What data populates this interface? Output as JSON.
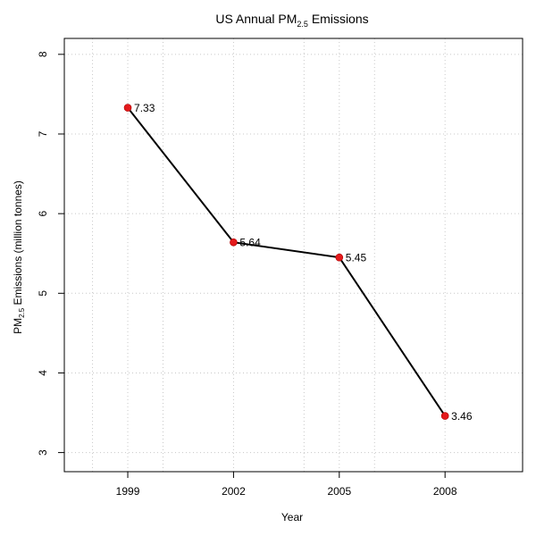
{
  "chart_data": {
    "type": "line",
    "title": {
      "prefix": "US Annual PM",
      "subscript": "2.5",
      "suffix": " Emissions"
    },
    "xlabel": "Year",
    "ylabel": {
      "prefix": "PM",
      "subscript": "2.5",
      "suffix": " Emissions (million tonnes)"
    },
    "x": [
      1999,
      2002,
      2005,
      2008
    ],
    "x_tick_labels": [
      "1999",
      "2002",
      "2005",
      "2008"
    ],
    "series": [
      {
        "values": [
          7.33,
          5.64,
          5.45,
          3.46
        ],
        "labels": [
          "7.33",
          "5.64",
          "5.45",
          "3.46"
        ]
      }
    ],
    "xlim": [
      1997.2,
      2010.2
    ],
    "ylim": [
      2.76,
      8.2
    ],
    "y_ticks": [
      3,
      4,
      5,
      6,
      7,
      8
    ],
    "y_tick_labels": [
      "3",
      "4",
      "5",
      "6",
      "7",
      "8"
    ],
    "x_minor_grid": [
      1998,
      2000,
      2004,
      2006
    ],
    "grid": true,
    "grid_style": "dotted",
    "line_color": "#000000",
    "point_color": "#e41a1c"
  }
}
